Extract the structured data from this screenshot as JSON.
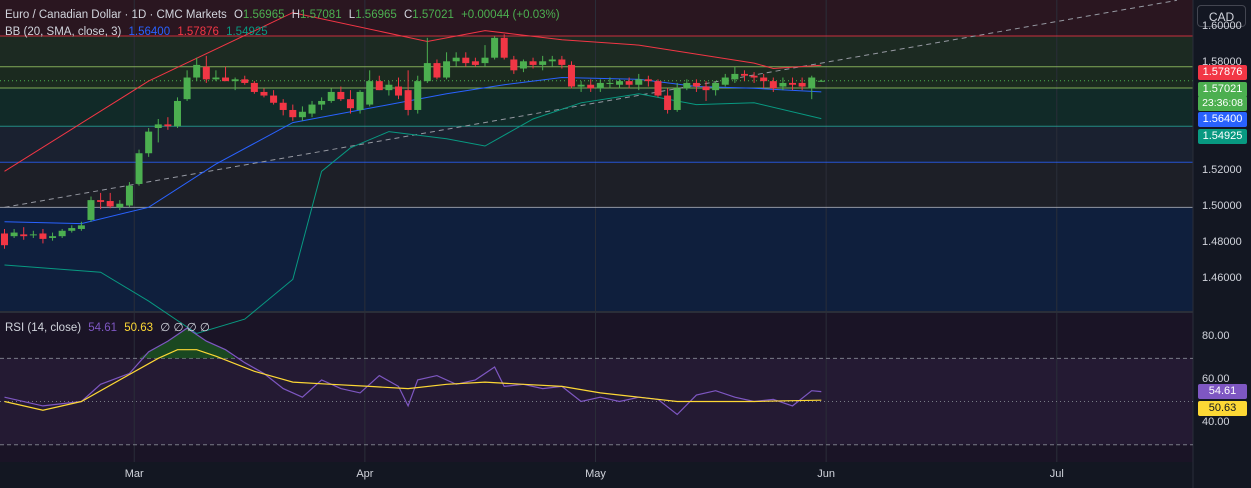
{
  "header": {
    "symbol": "Euro / Canadian Dollar · 1D · CMC Markets",
    "open_label": "O",
    "open": "1.56965",
    "high_label": "H",
    "high": "1.57081",
    "low_label": "L",
    "low": "1.56965",
    "close_label": "C",
    "close": "1.57021",
    "change": "+0.00044 (+0.03%)",
    "bb_title": "BB (20, SMA, close, 3)",
    "bb_basis": "1.56400",
    "bb_upper": "1.57876",
    "bb_lower": "1.54925",
    "rsi_title": "RSI (14, close)",
    "rsi_value": "54.61",
    "rsi_ma": "50.63",
    "rsi_extra": "∅ ∅ ∅ ∅"
  },
  "currency_button": "CAD",
  "price_tags": {
    "upper": "1.57876",
    "last": "1.57021",
    "countdown": "23:36:08",
    "basis": "1.56400",
    "lower": "1.54925"
  },
  "rsi_tags": {
    "rsi": "54.61",
    "ma": "50.63"
  },
  "colors": {
    "background": "#131722",
    "up": "#4caf50",
    "down": "#f23645",
    "bb_basis": "#2962ff",
    "bb_upper": "#f23645",
    "bb_lower": "#089981",
    "rsi": "#7e57c2",
    "rsi_ma": "#fdd835"
  },
  "chart_data": [
    {
      "type": "candlestick",
      "title": "Euro / Canadian Dollar · 1D · CMC Markets",
      "ylim": [
        1.4425,
        1.615
      ],
      "yticks": [
        "1.60000",
        "1.58000",
        "1.52000",
        "1.50000",
        "1.48000",
        "1.46000"
      ],
      "xticks": [
        "Mar",
        "Apr",
        "May",
        "Jun",
        "Jul"
      ],
      "candles": [
        {
          "o": 1.4855,
          "h": 1.488,
          "l": 1.477,
          "c": 1.479
        },
        {
          "o": 1.484,
          "h": 1.488,
          "l": 1.483,
          "c": 1.486
        },
        {
          "o": 1.485,
          "h": 1.489,
          "l": 1.482,
          "c": 1.484
        },
        {
          "o": 1.4848,
          "h": 1.487,
          "l": 1.483,
          "c": 1.485
        },
        {
          "o": 1.4855,
          "h": 1.488,
          "l": 1.48,
          "c": 1.4825
        },
        {
          "o": 1.483,
          "h": 1.486,
          "l": 1.4815,
          "c": 1.484
        },
        {
          "o": 1.484,
          "h": 1.488,
          "l": 1.483,
          "c": 1.487
        },
        {
          "o": 1.487,
          "h": 1.49,
          "l": 1.486,
          "c": 1.4885
        },
        {
          "o": 1.488,
          "h": 1.492,
          "l": 1.487,
          "c": 1.49
        },
        {
          "o": 1.493,
          "h": 1.506,
          "l": 1.492,
          "c": 1.504
        },
        {
          "o": 1.504,
          "h": 1.508,
          "l": 1.499,
          "c": 1.503
        },
        {
          "o": 1.5035,
          "h": 1.508,
          "l": 1.4995,
          "c": 1.5005
        },
        {
          "o": 1.5,
          "h": 1.504,
          "l": 1.4985,
          "c": 1.502
        },
        {
          "o": 1.501,
          "h": 1.514,
          "l": 1.5,
          "c": 1.512
        },
        {
          "o": 1.513,
          "h": 1.532,
          "l": 1.512,
          "c": 1.53
        },
        {
          "o": 1.53,
          "h": 1.544,
          "l": 1.528,
          "c": 1.542
        },
        {
          "o": 1.544,
          "h": 1.549,
          "l": 1.536,
          "c": 1.546
        },
        {
          "o": 1.546,
          "h": 1.55,
          "l": 1.543,
          "c": 1.545
        },
        {
          "o": 1.545,
          "h": 1.561,
          "l": 1.544,
          "c": 1.559
        },
        {
          "o": 1.56,
          "h": 1.576,
          "l": 1.559,
          "c": 1.572
        },
        {
          "o": 1.572,
          "h": 1.583,
          "l": 1.57,
          "c": 1.579
        },
        {
          "o": 1.578,
          "h": 1.584,
          "l": 1.569,
          "c": 1.571
        },
        {
          "o": 1.571,
          "h": 1.576,
          "l": 1.57,
          "c": 1.572
        },
        {
          "o": 1.572,
          "h": 1.578,
          "l": 1.57,
          "c": 1.57
        },
        {
          "o": 1.57,
          "h": 1.572,
          "l": 1.565,
          "c": 1.571
        },
        {
          "o": 1.571,
          "h": 1.573,
          "l": 1.568,
          "c": 1.569
        },
        {
          "o": 1.569,
          "h": 1.57,
          "l": 1.563,
          "c": 1.564
        },
        {
          "o": 1.564,
          "h": 1.566,
          "l": 1.561,
          "c": 1.562
        },
        {
          "o": 1.562,
          "h": 1.565,
          "l": 1.557,
          "c": 1.558
        },
        {
          "o": 1.558,
          "h": 1.56,
          "l": 1.551,
          "c": 1.554
        },
        {
          "o": 1.554,
          "h": 1.557,
          "l": 1.548,
          "c": 1.55
        },
        {
          "o": 1.55,
          "h": 1.556,
          "l": 1.548,
          "c": 1.553
        },
        {
          "o": 1.552,
          "h": 1.559,
          "l": 1.55,
          "c": 1.557
        },
        {
          "o": 1.557,
          "h": 1.561,
          "l": 1.554,
          "c": 1.559
        },
        {
          "o": 1.559,
          "h": 1.566,
          "l": 1.558,
          "c": 1.564
        },
        {
          "o": 1.564,
          "h": 1.567,
          "l": 1.559,
          "c": 1.56
        },
        {
          "o": 1.56,
          "h": 1.565,
          "l": 1.552,
          "c": 1.555
        },
        {
          "o": 1.554,
          "h": 1.565,
          "l": 1.552,
          "c": 1.564
        },
        {
          "o": 1.557,
          "h": 1.576,
          "l": 1.556,
          "c": 1.57
        },
        {
          "o": 1.57,
          "h": 1.573,
          "l": 1.565,
          "c": 1.565
        },
        {
          "o": 1.565,
          "h": 1.57,
          "l": 1.562,
          "c": 1.568
        },
        {
          "o": 1.567,
          "h": 1.572,
          "l": 1.56,
          "c": 1.562
        },
        {
          "o": 1.565,
          "h": 1.576,
          "l": 1.551,
          "c": 1.554
        },
        {
          "o": 1.554,
          "h": 1.573,
          "l": 1.552,
          "c": 1.57
        },
        {
          "o": 1.57,
          "h": 1.594,
          "l": 1.569,
          "c": 1.58
        },
        {
          "o": 1.58,
          "h": 1.582,
          "l": 1.571,
          "c": 1.572
        },
        {
          "o": 1.572,
          "h": 1.586,
          "l": 1.571,
          "c": 1.581
        },
        {
          "o": 1.581,
          "h": 1.586,
          "l": 1.578,
          "c": 1.583
        },
        {
          "o": 1.583,
          "h": 1.586,
          "l": 1.578,
          "c": 1.58
        },
        {
          "o": 1.581,
          "h": 1.583,
          "l": 1.578,
          "c": 1.579
        },
        {
          "o": 1.58,
          "h": 1.59,
          "l": 1.578,
          "c": 1.583
        },
        {
          "o": 1.583,
          "h": 1.595,
          "l": 1.582,
          "c": 1.594
        },
        {
          "o": 1.594,
          "h": 1.596,
          "l": 1.582,
          "c": 1.583
        },
        {
          "o": 1.582,
          "h": 1.584,
          "l": 1.574,
          "c": 1.576
        },
        {
          "o": 1.577,
          "h": 1.582,
          "l": 1.575,
          "c": 1.581
        },
        {
          "o": 1.581,
          "h": 1.583,
          "l": 1.577,
          "c": 1.579
        },
        {
          "o": 1.579,
          "h": 1.584,
          "l": 1.576,
          "c": 1.581
        },
        {
          "o": 1.581,
          "h": 1.584,
          "l": 1.578,
          "c": 1.582
        },
        {
          "o": 1.582,
          "h": 1.584,
          "l": 1.577,
          "c": 1.579
        },
        {
          "o": 1.579,
          "h": 1.581,
          "l": 1.566,
          "c": 1.567
        },
        {
          "o": 1.567,
          "h": 1.57,
          "l": 1.564,
          "c": 1.568
        },
        {
          "o": 1.568,
          "h": 1.571,
          "l": 1.564,
          "c": 1.566
        },
        {
          "o": 1.566,
          "h": 1.571,
          "l": 1.564,
          "c": 1.569
        },
        {
          "o": 1.569,
          "h": 1.572,
          "l": 1.566,
          "c": 1.569
        },
        {
          "o": 1.568,
          "h": 1.571,
          "l": 1.566,
          "c": 1.57
        },
        {
          "o": 1.57,
          "h": 1.572,
          "l": 1.566,
          "c": 1.568
        },
        {
          "o": 1.568,
          "h": 1.574,
          "l": 1.565,
          "c": 1.571
        },
        {
          "o": 1.571,
          "h": 1.573,
          "l": 1.567,
          "c": 1.57
        },
        {
          "o": 1.57,
          "h": 1.571,
          "l": 1.561,
          "c": 1.562
        },
        {
          "o": 1.562,
          "h": 1.566,
          "l": 1.552,
          "c": 1.554
        },
        {
          "o": 1.554,
          "h": 1.569,
          "l": 1.553,
          "c": 1.566
        },
        {
          "o": 1.566,
          "h": 1.571,
          "l": 1.565,
          "c": 1.569
        },
        {
          "o": 1.569,
          "h": 1.571,
          "l": 1.564,
          "c": 1.567
        },
        {
          "o": 1.567,
          "h": 1.57,
          "l": 1.559,
          "c": 1.565
        },
        {
          "o": 1.565,
          "h": 1.57,
          "l": 1.562,
          "c": 1.569
        },
        {
          "o": 1.568,
          "h": 1.574,
          "l": 1.567,
          "c": 1.572
        },
        {
          "o": 1.571,
          "h": 1.578,
          "l": 1.569,
          "c": 1.574
        },
        {
          "o": 1.574,
          "h": 1.576,
          "l": 1.57,
          "c": 1.573
        },
        {
          "o": 1.573,
          "h": 1.575,
          "l": 1.569,
          "c": 1.572
        },
        {
          "o": 1.572,
          "h": 1.574,
          "l": 1.566,
          "c": 1.57
        },
        {
          "o": 1.57,
          "h": 1.572,
          "l": 1.564,
          "c": 1.566
        },
        {
          "o": 1.567,
          "h": 1.572,
          "l": 1.565,
          "c": 1.569
        },
        {
          "o": 1.569,
          "h": 1.572,
          "l": 1.565,
          "c": 1.568
        },
        {
          "o": 1.569,
          "h": 1.572,
          "l": 1.565,
          "c": 1.567
        },
        {
          "o": 1.566,
          "h": 1.573,
          "l": 1.56,
          "c": 1.572
        },
        {
          "o": 1.5697,
          "h": 1.5708,
          "l": 1.5697,
          "c": 1.5702
        }
      ],
      "bb_upper": [
        [
          0,
          1.52
        ],
        [
          15,
          1.57
        ],
        [
          30,
          1.608
        ],
        [
          44,
          1.592
        ],
        [
          50,
          1.598
        ],
        [
          58,
          1.593
        ],
        [
          66,
          1.59
        ],
        [
          72,
          1.585
        ],
        [
          78,
          1.58
        ],
        [
          80,
          1.577
        ],
        [
          85,
          1.5788
        ]
      ],
      "bb_basis": [
        [
          0,
          1.492
        ],
        [
          8,
          1.491
        ],
        [
          15,
          1.5
        ],
        [
          22,
          1.524
        ],
        [
          30,
          1.547
        ],
        [
          40,
          1.557
        ],
        [
          46,
          1.563
        ],
        [
          52,
          1.568
        ],
        [
          58,
          1.572
        ],
        [
          66,
          1.571
        ],
        [
          72,
          1.567
        ],
        [
          78,
          1.566
        ],
        [
          85,
          1.564
        ]
      ],
      "bb_lower": [
        [
          0,
          1.468
        ],
        [
          10,
          1.464
        ],
        [
          15,
          1.448
        ],
        [
          20,
          1.43
        ],
        [
          25,
          1.438
        ],
        [
          30,
          1.46
        ],
        [
          33,
          1.52
        ],
        [
          36,
          1.533
        ],
        [
          40,
          1.542
        ],
        [
          46,
          1.538
        ],
        [
          50,
          1.534
        ],
        [
          55,
          1.549
        ],
        [
          60,
          1.558
        ],
        [
          66,
          1.563
        ],
        [
          72,
          1.557
        ],
        [
          78,
          1.558
        ],
        [
          85,
          1.5492
        ]
      ],
      "trendline": [
        [
          0,
          1.5
        ],
        [
          85,
          1.58
        ]
      ],
      "horizontal_levels": [
        1.595,
        1.578,
        1.5662,
        1.545,
        1.525,
        1.5
      ]
    },
    {
      "type": "line",
      "title": "RSI (14, close)",
      "ylim": [
        22,
        91
      ],
      "yticks": [
        "80.00",
        "60.00",
        "40.00"
      ],
      "bands": [
        70,
        30
      ],
      "series": [
        {
          "name": "RSI",
          "points": [
            [
              0,
              52
            ],
            [
              4,
              48
            ],
            [
              8,
              50
            ],
            [
              10,
              58
            ],
            [
              13,
              63
            ],
            [
              15,
              73
            ],
            [
              17,
              78
            ],
            [
              19,
              84
            ],
            [
              21,
              78
            ],
            [
              23,
              74
            ],
            [
              25,
              68
            ],
            [
              27,
              63
            ],
            [
              29,
              56
            ],
            [
              31,
              52
            ],
            [
              33,
              60
            ],
            [
              35,
              56
            ],
            [
              37,
              54
            ],
            [
              39,
              62
            ],
            [
              41,
              57
            ],
            [
              42,
              48
            ],
            [
              43,
              60
            ],
            [
              45,
              62
            ],
            [
              47,
              58
            ],
            [
              49,
              60
            ],
            [
              51,
              66
            ],
            [
              52,
              57
            ],
            [
              54,
              58
            ],
            [
              56,
              56
            ],
            [
              58,
              57
            ],
            [
              60,
              50
            ],
            [
              62,
              52
            ],
            [
              64,
              50
            ],
            [
              66,
              52
            ],
            [
              68,
              51
            ],
            [
              70,
              44
            ],
            [
              72,
              53
            ],
            [
              74,
              55
            ],
            [
              76,
              52
            ],
            [
              78,
              50
            ],
            [
              80,
              51
            ],
            [
              82,
              48
            ],
            [
              84,
              55
            ],
            [
              85,
              54.61
            ]
          ]
        },
        {
          "name": "RSI-based MA",
          "points": [
            [
              0,
              50
            ],
            [
              4,
              46
            ],
            [
              8,
              50
            ],
            [
              12,
              60
            ],
            [
              16,
              70
            ],
            [
              18,
              74
            ],
            [
              20,
              74
            ],
            [
              22,
              71
            ],
            [
              26,
              64
            ],
            [
              30,
              59
            ],
            [
              34,
              58
            ],
            [
              38,
              57
            ],
            [
              42,
              56
            ],
            [
              46,
              58
            ],
            [
              50,
              59
            ],
            [
              54,
              58
            ],
            [
              58,
              57
            ],
            [
              62,
              54
            ],
            [
              66,
              52
            ],
            [
              70,
              50
            ],
            [
              74,
              50
            ],
            [
              78,
              50
            ],
            [
              82,
              50.4
            ],
            [
              85,
              50.63
            ]
          ]
        }
      ]
    }
  ]
}
